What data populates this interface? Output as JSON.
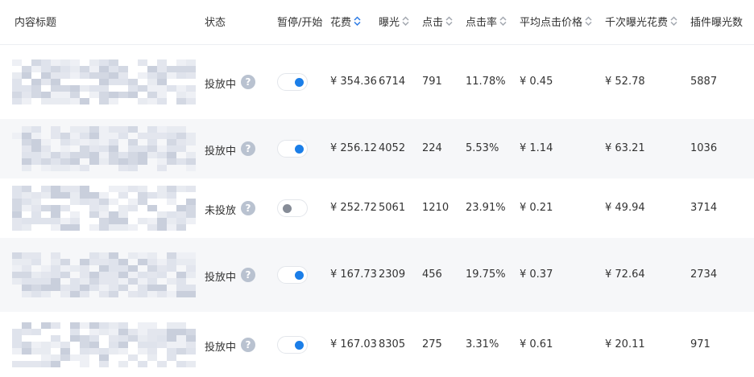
{
  "table": {
    "help_icon": "?",
    "columns": [
      {
        "label": "内容标题",
        "sortable": false
      },
      {
        "label": "状态",
        "sortable": false
      },
      {
        "label": "暂停/开始",
        "sortable": false
      },
      {
        "label": "花费",
        "sortable": true,
        "sort_active": true
      },
      {
        "label": "曝光",
        "sortable": true,
        "sort_active": false
      },
      {
        "label": "点击",
        "sortable": true,
        "sort_active": false
      },
      {
        "label": "点击率",
        "sortable": true,
        "sort_active": false
      },
      {
        "label": "平均点击价格",
        "sortable": true,
        "sort_active": false
      },
      {
        "label": "千次曝光花费",
        "sortable": true,
        "sort_active": false
      },
      {
        "label": "插件曝光数",
        "sortable": false
      }
    ],
    "rows": [
      {
        "status": "投放中",
        "enabled": true,
        "cells": [
          "¥ 354.36",
          "6714",
          "791",
          "11.78%",
          "¥ 0.45",
          "¥ 52.78",
          "5887"
        ]
      },
      {
        "status": "投放中",
        "enabled": true,
        "cells": [
          "¥ 256.12",
          "4052",
          "224",
          "5.53%",
          "¥ 1.14",
          "¥ 63.21",
          "1036"
        ]
      },
      {
        "status": "未投放",
        "enabled": false,
        "cells": [
          "¥ 252.72",
          "5061",
          "1210",
          "23.91%",
          "¥ 0.21",
          "¥ 49.94",
          "3714"
        ]
      },
      {
        "status": "投放中",
        "enabled": true,
        "cells": [
          "¥ 167.73",
          "2309",
          "456",
          "19.75%",
          "¥ 0.37",
          "¥ 72.64",
          "2734"
        ]
      },
      {
        "status": "投放中",
        "enabled": true,
        "cells": [
          "¥ 167.03",
          "8305",
          "275",
          "3.31%",
          "¥ 0.61",
          "¥ 20.11",
          "971"
        ]
      }
    ]
  }
}
